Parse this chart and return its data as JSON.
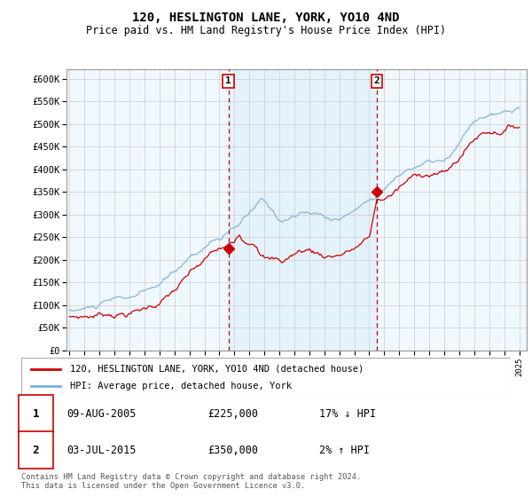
{
  "title": "120, HESLINGTON LANE, YORK, YO10 4ND",
  "subtitle": "Price paid vs. HM Land Registry's House Price Index (HPI)",
  "legend_line1": "120, HESLINGTON LANE, YORK, YO10 4ND (detached house)",
  "legend_line2": "HPI: Average price, detached house, York",
  "annotation1_label": "1",
  "annotation1_date": "09-AUG-2005",
  "annotation1_price": "£225,000",
  "annotation1_hpi": "17% ↓ HPI",
  "annotation2_label": "2",
  "annotation2_date": "03-JUL-2015",
  "annotation2_price": "£350,000",
  "annotation2_hpi": "2% ↑ HPI",
  "footer": "Contains HM Land Registry data © Crown copyright and database right 2024.\nThis data is licensed under the Open Government Licence v3.0.",
  "hpi_color": "#7bafd4",
  "hpi_fill_color": "#cce0f0",
  "price_color": "#cc0000",
  "vline_color": "#cc0000",
  "bg_color": "#e8f4ff",
  "chart_bg": "#f0f8ff",
  "shade_color": "#d0e8f8",
  "ylim": [
    0,
    620000
  ],
  "yticks": [
    0,
    50000,
    100000,
    150000,
    200000,
    250000,
    300000,
    350000,
    400000,
    450000,
    500000,
    550000,
    600000
  ],
  "sale1_x": 2005.6,
  "sale1_y": 225000,
  "sale2_x": 2015.5,
  "sale2_y": 350000,
  "xlim_left": 1994.8,
  "xlim_right": 2025.5
}
